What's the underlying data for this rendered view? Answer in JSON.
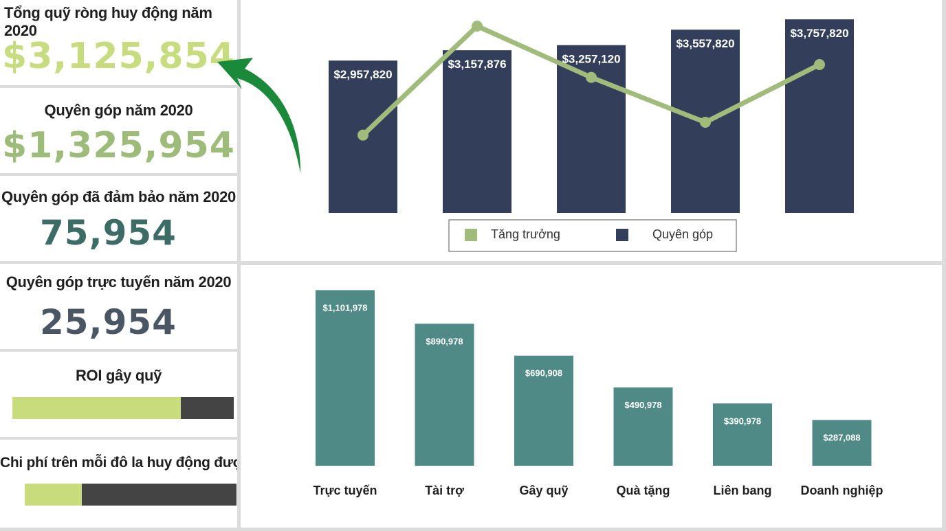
{
  "kpis": {
    "net_funds": {
      "title": "Tổng quỹ ròng huy động năm 2020",
      "value": "$3,125,854"
    },
    "donations": {
      "title": "Quyên góp năm 2020",
      "value": "$1,325,954"
    },
    "secured": {
      "title": "Quyên góp đã đảm bảo năm 2020",
      "value": "75,954"
    },
    "online": {
      "title": "Quyên góp trực tuyến năm 2020",
      "value": "25,954"
    },
    "roi": {
      "title": "ROI gây quỹ",
      "fraction": 0.76
    },
    "cost_per_dollar": {
      "title": "Chi phí trên mỗi đô la huy động được",
      "fraction": 0.27
    }
  },
  "colors": {
    "navy": "#333f5a",
    "teal": "#508a86",
    "light_green": "#c8dc7e",
    "olive_green": "#a1bb7b",
    "dark_grey": "#444444",
    "arrow_green": "#1a8a3a",
    "value1": "#c7dc7f",
    "value2": "#9dbb79",
    "value3": "#3d6b66",
    "value4": "#4a5663"
  },
  "chart_data": [
    {
      "type": "bar",
      "series": [
        {
          "name": "Quyên góp",
          "values": [
            2957820,
            3157876,
            3257120,
            3557820,
            3757820
          ],
          "labels": [
            "$2,957,820",
            "$3,157,876",
            "$3,257,120",
            "$3,557,820",
            "$3,757,820"
          ]
        },
        {
          "name": "Tăng trưởng",
          "type": "line",
          "values": [
            1.0,
            2.7,
            1.9,
            1.2,
            2.1
          ]
        }
      ],
      "legend": {
        "position": "bottom",
        "items": [
          "Tăng trưởng",
          "Quyên góp"
        ]
      },
      "ylim": [
        0,
        4000000
      ],
      "grid": false
    },
    {
      "type": "bar",
      "categories": [
        "Trực tuyến",
        "Tài trợ",
        "Gây quỹ",
        "Quà tặng",
        "Liên bang",
        "Doanh nghiệp"
      ],
      "values": [
        1101978,
        890978,
        690908,
        490978,
        390978,
        287088
      ],
      "labels": [
        "$1,101,978",
        "$890,978",
        "$690,908",
        "$490,978",
        "$390,978",
        "$287,088"
      ],
      "ylim": [
        0,
        1250000
      ],
      "grid": false
    }
  ]
}
